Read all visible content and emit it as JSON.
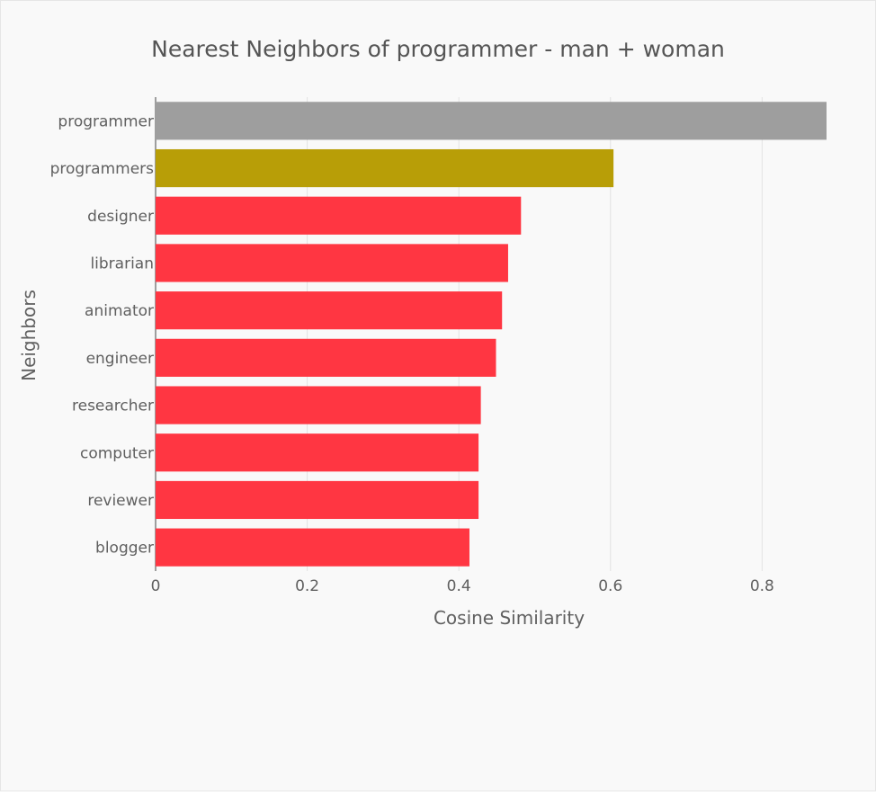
{
  "chart_data": {
    "type": "bar",
    "orientation": "horizontal",
    "title": "Nearest Neighbors of programmer - man + woman",
    "xlabel": "Cosine Similarity",
    "ylabel": "Neighbors",
    "xlim": [
      0,
      0.885
    ],
    "xticks": [
      0,
      0.2,
      0.4,
      0.6,
      0.8
    ],
    "xtick_labels": [
      "0",
      "0.2",
      "0.4",
      "0.6",
      "0.8"
    ],
    "grid": "vertical",
    "legend": "none",
    "categories": [
      "programmer",
      "programmers",
      "designer",
      "librarian",
      "animator",
      "engineer",
      "researcher",
      "computer",
      "reviewer",
      "blogger"
    ],
    "values": [
      0.885,
      0.604,
      0.482,
      0.465,
      0.457,
      0.449,
      0.429,
      0.426,
      0.426,
      0.414
    ],
    "bar_colors": [
      "#9e9e9e",
      "#b89e07",
      "#ff3642",
      "#ff3642",
      "#ff3642",
      "#ff3642",
      "#ff3642",
      "#ff3642",
      "#ff3642",
      "#ff3642"
    ]
  }
}
